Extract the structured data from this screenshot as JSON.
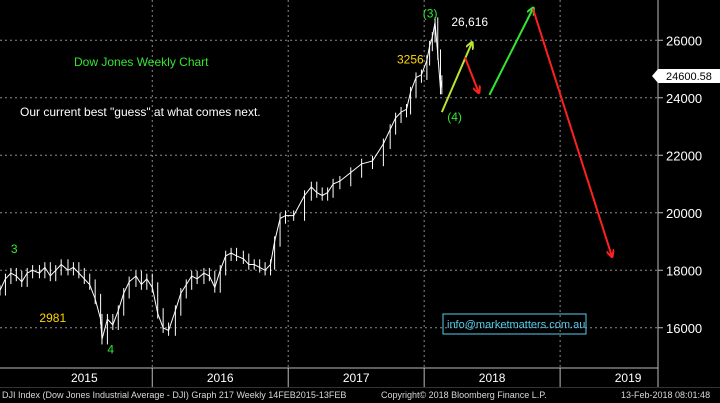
{
  "chart_data": {
    "type": "line",
    "title": "Dow Jones Weekly Chart",
    "subtitle": "Our current best \"guess\" at what comes next.",
    "ylim": [
      14600,
      27400
    ],
    "y_ticks": [
      16000,
      18000,
      20000,
      22000,
      24000,
      26000
    ],
    "y_tick_labels": [
      "16000",
      "18000",
      "20000",
      "22000",
      "24000",
      "26000"
    ],
    "x_labels": [
      {
        "label": "2015",
        "x": 2015.5
      },
      {
        "label": "2016",
        "x": 2016.5
      },
      {
        "label": "2017",
        "x": 2017.5
      },
      {
        "label": "2018",
        "x": 2018.5
      },
      {
        "label": "2019",
        "x": 2019.5
      }
    ],
    "year_starts": [
      2016.0,
      2017.0,
      2018.0,
      2019.0
    ],
    "last_price": "24600.58",
    "grid": true,
    "series": [
      {
        "color": "#ffffff",
        "points": [
          [
            2014.88,
            17300
          ],
          [
            2014.92,
            17700
          ],
          [
            2014.96,
            17900
          ],
          [
            2015.0,
            17800
          ],
          [
            2015.04,
            17600
          ],
          [
            2015.08,
            17900
          ],
          [
            2015.12,
            18000
          ],
          [
            2015.17,
            17900
          ],
          [
            2015.21,
            18100
          ],
          [
            2015.25,
            17800
          ],
          [
            2015.29,
            18000
          ],
          [
            2015.33,
            18200
          ],
          [
            2015.38,
            18000
          ],
          [
            2015.42,
            18100
          ],
          [
            2015.46,
            17900
          ],
          [
            2015.5,
            17700
          ],
          [
            2015.54,
            17500
          ],
          [
            2015.58,
            17000
          ],
          [
            2015.62,
            16300
          ],
          [
            2015.63,
            15600
          ],
          [
            2015.67,
            16300
          ],
          [
            2015.71,
            16100
          ],
          [
            2015.75,
            16600
          ],
          [
            2015.79,
            17200
          ],
          [
            2015.83,
            17600
          ],
          [
            2015.88,
            17800
          ],
          [
            2015.92,
            17500
          ],
          [
            2015.96,
            17700
          ],
          [
            2016.0,
            17400
          ],
          [
            2016.04,
            16500
          ],
          [
            2016.08,
            16000
          ],
          [
            2016.12,
            15900
          ],
          [
            2016.17,
            16600
          ],
          [
            2016.21,
            17200
          ],
          [
            2016.25,
            17500
          ],
          [
            2016.29,
            17800
          ],
          [
            2016.33,
            17700
          ],
          [
            2016.38,
            17900
          ],
          [
            2016.42,
            17800
          ],
          [
            2016.46,
            17400
          ],
          [
            2016.5,
            18000
          ],
          [
            2016.54,
            18500
          ],
          [
            2016.58,
            18600
          ],
          [
            2016.62,
            18500
          ],
          [
            2016.67,
            18400
          ],
          [
            2016.71,
            18200
          ],
          [
            2016.75,
            18200
          ],
          [
            2016.79,
            18100
          ],
          [
            2016.83,
            18000
          ],
          [
            2016.87,
            18200
          ],
          [
            2016.9,
            19000
          ],
          [
            2016.94,
            19800
          ],
          [
            2016.98,
            19900
          ],
          [
            2017.04,
            19900
          ],
          [
            2017.12,
            20600
          ],
          [
            2017.17,
            20900
          ],
          [
            2017.21,
            20700
          ],
          [
            2017.25,
            20600
          ],
          [
            2017.29,
            20700
          ],
          [
            2017.33,
            21000
          ],
          [
            2017.38,
            21100
          ],
          [
            2017.46,
            21400
          ],
          [
            2017.54,
            21700
          ],
          [
            2017.62,
            21800
          ],
          [
            2017.7,
            22400
          ],
          [
            2017.75,
            22900
          ],
          [
            2017.79,
            23300
          ],
          [
            2017.83,
            23500
          ],
          [
            2017.87,
            23600
          ],
          [
            2017.9,
            24200
          ],
          [
            2017.94,
            24700
          ],
          [
            2017.98,
            24800
          ],
          [
            2018.02,
            25300
          ],
          [
            2018.04,
            25800
          ],
          [
            2018.06,
            26100
          ],
          [
            2018.08,
            26616
          ],
          [
            2018.1,
            25500
          ],
          [
            2018.12,
            24300
          ],
          [
            2018.13,
            24600
          ]
        ]
      }
    ],
    "annotations": [
      {
        "text": "3",
        "color": "#33e633",
        "anchor": [
          2014.96,
          18600
        ]
      },
      {
        "text": "2981",
        "color": "#ffd700",
        "anchor": [
          2015.17,
          16200
        ]
      },
      {
        "text": "4",
        "color": "#33e633",
        "anchor": [
          2015.67,
          15100
        ]
      },
      {
        "text": "(3)",
        "color": "#33e633",
        "anchor": [
          2017.99,
          26800
        ]
      },
      {
        "text": "26,616",
        "color": "#ffffff",
        "anchor": [
          2018.2,
          26500
        ]
      },
      {
        "text": "3256",
        "color": "#ffd700",
        "anchor": [
          2017.8,
          25200
        ]
      },
      {
        "text": "(4)",
        "color": "#33e633",
        "anchor": [
          2018.17,
          23200
        ]
      }
    ],
    "forecast_arrows": [
      {
        "color": "#b8e633",
        "from": [
          2018.13,
          23500
        ],
        "to": [
          2018.35,
          25900
        ]
      },
      {
        "color": "#ff2020",
        "from": [
          2018.3,
          25400
        ],
        "to": [
          2018.4,
          24200
        ]
      },
      {
        "color": "#33e633",
        "from": [
          2018.48,
          24100
        ],
        "to": [
          2018.8,
          27100
        ]
      },
      {
        "color": "#ff2020",
        "from": [
          2018.8,
          27100
        ],
        "to": [
          2019.38,
          18500
        ]
      }
    ]
  },
  "email": "info@marketmatters.com.au",
  "footer": {
    "left": "DJI Index (Dow Jones Industrial Average - DJI) Graph 217  Weekly 14FEB2015-13FEB",
    "center": "Copyright© 2018 Bloomberg Finance L.P.",
    "right": "13-Feb-2018 08:01:48"
  },
  "colors": {
    "title": "#33e633",
    "subtitle": "#ffffff",
    "grid": "#8c8c8c",
    "email_box": "#55ccee",
    "email_text": "#55ccee"
  }
}
